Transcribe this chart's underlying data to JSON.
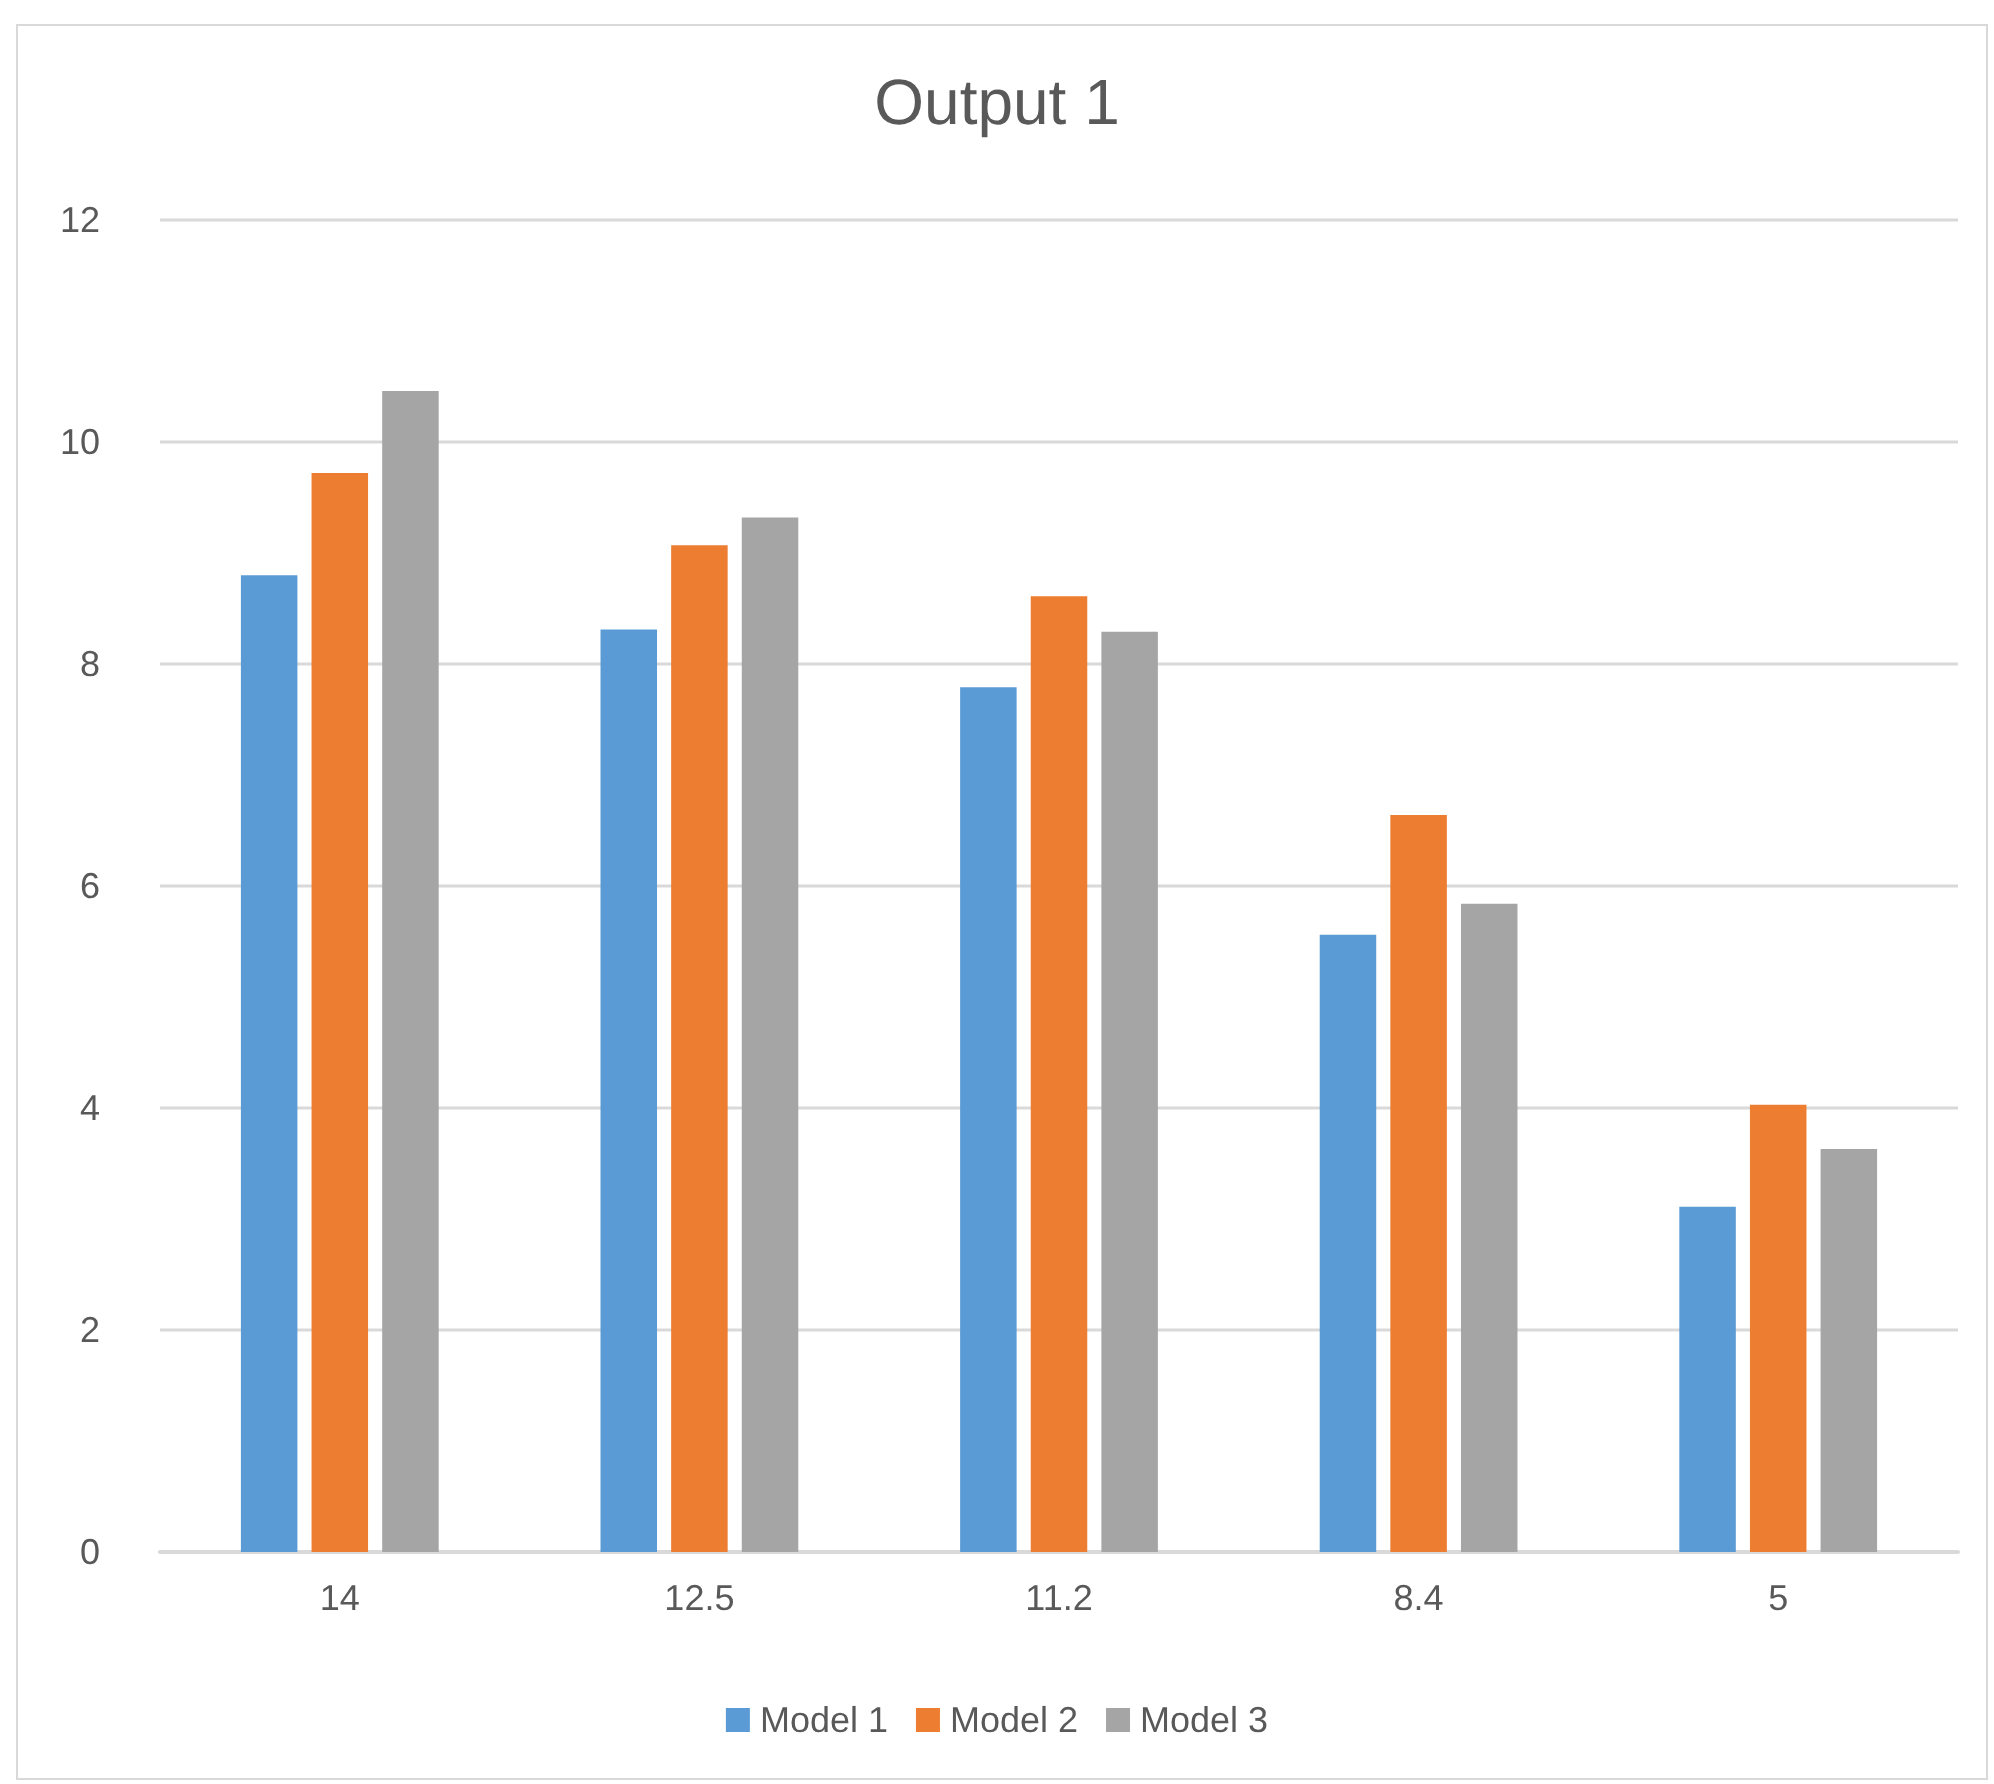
{
  "chart_data": {
    "type": "bar",
    "title": "Output 1",
    "categories": [
      "14",
      "12.5",
      "11.2",
      "8.4",
      "5"
    ],
    "series": [
      {
        "name": "Model 1",
        "color": "#5b9bd5",
        "values": [
          8.8,
          8.31,
          7.79,
          5.56,
          3.11
        ]
      },
      {
        "name": "Model 2",
        "color": "#ed7d31",
        "values": [
          9.72,
          9.07,
          8.61,
          6.64,
          4.03
        ]
      },
      {
        "name": "Model 3",
        "color": "#a5a5a5",
        "values": [
          10.46,
          9.32,
          8.29,
          5.84,
          3.63
        ]
      }
    ],
    "ylim": [
      0,
      12
    ],
    "yticks": [
      0,
      2,
      4,
      6,
      8,
      10,
      12
    ],
    "grid": "y",
    "legend": "bottom"
  }
}
